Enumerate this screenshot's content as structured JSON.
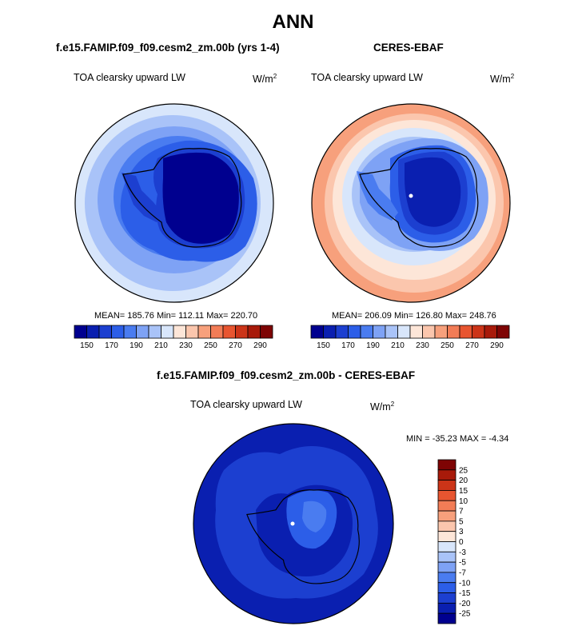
{
  "main_title": "ANN",
  "units_base": "W/m",
  "units_exp": "2",
  "variable": "TOA clearsky upward LW",
  "chart_data": [
    {
      "type": "heatmap",
      "projection": "south polar stereographic",
      "title": "f.e15.FAMIP.f09_f09.cesm2_zm.00b (yrs 1-4)",
      "subtitle": "TOA clearsky upward LW",
      "units": "W/m2",
      "stats_text": "MEAN= 185.76  Min= 112.11  Max= 220.70",
      "mean": 185.76,
      "min": 112.11,
      "max": 220.7,
      "colorbar": {
        "orientation": "horizontal",
        "levels": [
          140,
          150,
          160,
          170,
          180,
          190,
          200,
          210,
          220,
          230,
          240,
          250,
          260,
          270,
          280,
          290
        ],
        "tick_labels": [
          "150",
          "170",
          "190",
          "210",
          "230",
          "250",
          "270",
          "290"
        ],
        "colors": [
          "#00008f",
          "#0a1fb0",
          "#1c3fd0",
          "#2c5ee8",
          "#4a7cf0",
          "#7ea2f5",
          "#a9c3f8",
          "#d8e6fb",
          "#fde6d8",
          "#fbc6ad",
          "#f7a07c",
          "#f27c56",
          "#e85530",
          "#cc3418",
          "#a81a0a",
          "#7e0404"
        ]
      }
    },
    {
      "type": "heatmap",
      "projection": "south polar stereographic",
      "title": "CERES-EBAF",
      "subtitle": "TOA clearsky upward LW",
      "units": "W/m2",
      "stats_text": "MEAN= 206.09  Min= 126.80  Max= 248.76",
      "mean": 206.09,
      "min": 126.8,
      "max": 248.76,
      "colorbar": {
        "orientation": "horizontal",
        "levels": [
          140,
          150,
          160,
          170,
          180,
          190,
          200,
          210,
          220,
          230,
          240,
          250,
          260,
          270,
          280,
          290
        ],
        "tick_labels": [
          "150",
          "170",
          "190",
          "210",
          "230",
          "250",
          "270",
          "290"
        ],
        "colors": [
          "#00008f",
          "#0a1fb0",
          "#1c3fd0",
          "#2c5ee8",
          "#4a7cf0",
          "#7ea2f5",
          "#a9c3f8",
          "#d8e6fb",
          "#fde6d8",
          "#fbc6ad",
          "#f7a07c",
          "#f27c56",
          "#e85530",
          "#cc3418",
          "#a81a0a",
          "#7e0404"
        ]
      }
    },
    {
      "type": "heatmap",
      "projection": "south polar stereographic",
      "title": "f.e15.FAMIP.f09_f09.cesm2_zm.00b - CERES-EBAF",
      "subtitle": "TOA clearsky upward LW",
      "units": "W/m2",
      "stats_text": "MIN = -35.23 MAX =  -4.34",
      "min": -35.23,
      "max": -4.34,
      "colorbar": {
        "orientation": "vertical",
        "tick_labels": [
          "25",
          "20",
          "15",
          "10",
          "7",
          "5",
          "3",
          "0",
          "-3",
          "-5",
          "-7",
          "-10",
          "-15",
          "-20",
          "-25"
        ],
        "colors": [
          "#7e0404",
          "#a81a0a",
          "#cc3418",
          "#e85530",
          "#f27c56",
          "#f7a07c",
          "#fbc6ad",
          "#fde6d8",
          "#d8e6fb",
          "#a9c3f8",
          "#7ea2f5",
          "#4a7cf0",
          "#2c5ee8",
          "#1c3fd0",
          "#0a1fb0",
          "#00008f"
        ]
      }
    }
  ]
}
